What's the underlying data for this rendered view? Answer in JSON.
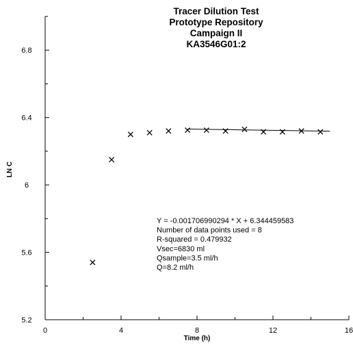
{
  "chart_data": {
    "type": "scatter",
    "title": [
      "Tracer Dilution Test",
      "Prototype Repository",
      "Campaign II",
      "KA3546G01:2"
    ],
    "xlabel": "Time (h)",
    "ylabel": "LN C",
    "xlim": [
      0,
      16
    ],
    "ylim": [
      5.2,
      7.0
    ],
    "xticks": [
      0,
      4,
      8,
      12,
      16
    ],
    "xtick_labels": [
      "0",
      "4",
      "8",
      "12",
      "16"
    ],
    "yticks": [
      5.2,
      5.6,
      6.0,
      6.4,
      6.8
    ],
    "ytick_labels": [
      "5.2",
      "5.6",
      "6",
      "6.4",
      "6.8"
    ],
    "grid": false,
    "marker": "x",
    "series": [
      {
        "x": [
          2.5,
          3.5,
          4.5,
          5.5,
          6.5,
          7.5,
          8.5,
          9.5,
          10.5,
          11.5,
          12.5,
          13.5,
          14.5
        ],
        "y": [
          5.54,
          6.15,
          6.3,
          6.31,
          6.32,
          6.325,
          6.325,
          6.32,
          6.33,
          6.315,
          6.315,
          6.32,
          6.315
        ]
      }
    ],
    "fit_line": {
      "slope": -0.001706990294,
      "intercept": 6.344459583,
      "x_range": [
        7.5,
        15
      ]
    },
    "annotations": [
      "Y = -0.001706990294 * X + 6.344459583",
      "Number of data points used = 8",
      "R-squared = 0.479932",
      "Vsec=6830 ml",
      "Qsample=3.5 ml/h",
      "Q=8.2 ml/h"
    ]
  },
  "colors": {
    "ink": "#000000",
    "background": "#ffffff"
  }
}
